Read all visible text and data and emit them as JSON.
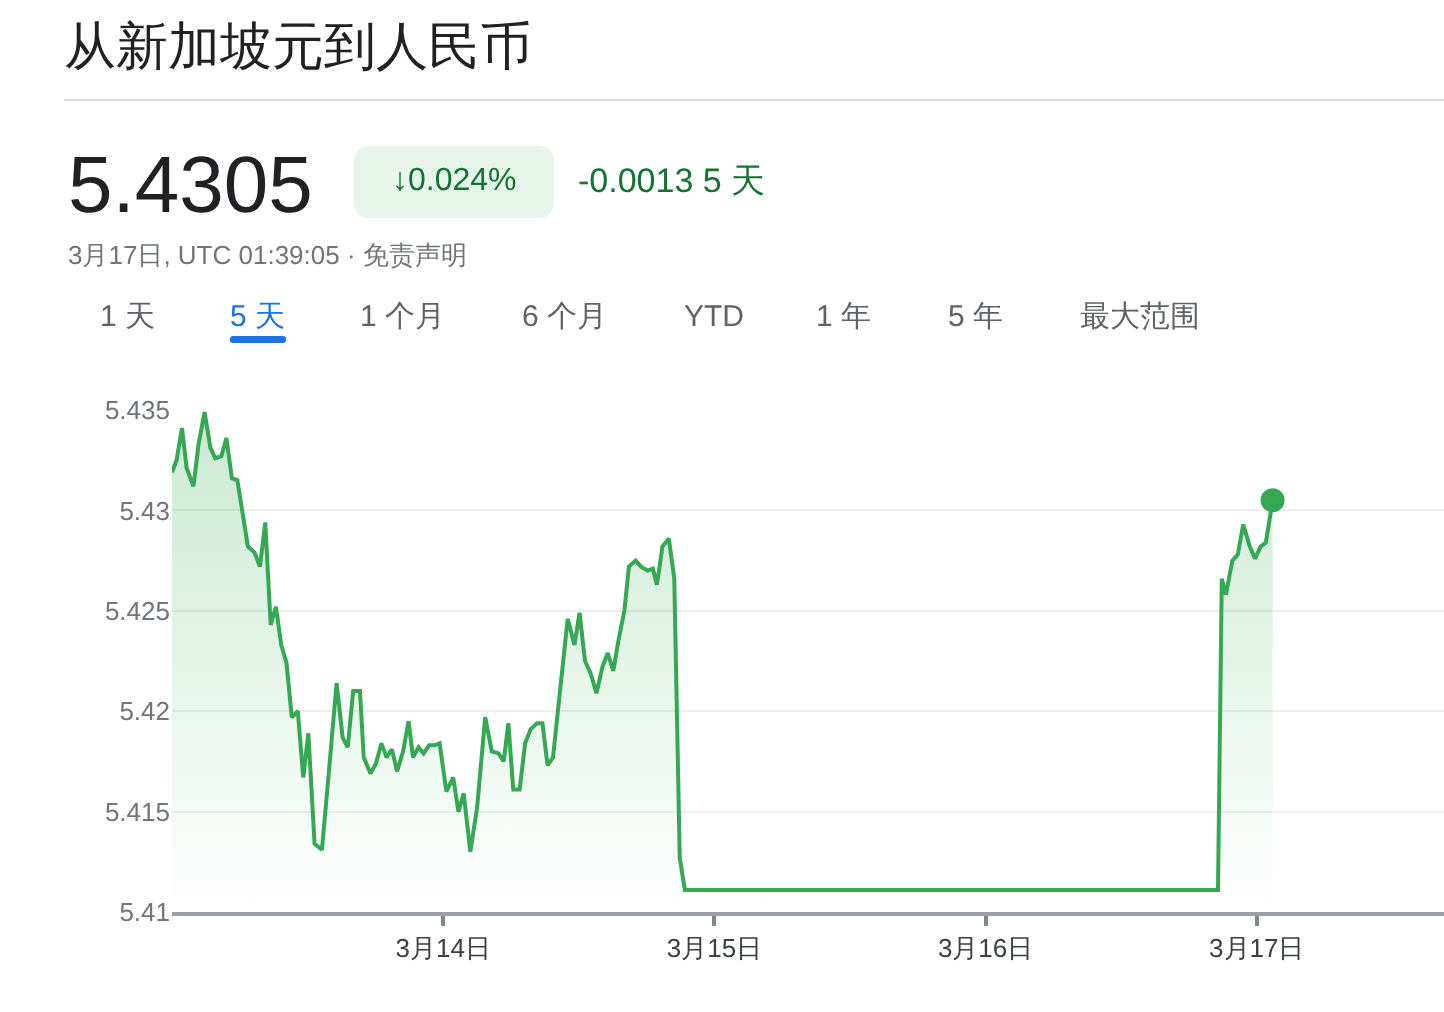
{
  "chart_data": {
    "type": "area",
    "title": "从新加坡元到人民币",
    "annotations": [
      "5.4305",
      "↓0.024%",
      "-0.0013 5 天",
      "3月17日, UTC 01:39:05 · 免责声明",
      "1 天",
      "5 天",
      "1 个月",
      "6 个月",
      "YTD",
      "1 年",
      "5 年",
      "最大范围"
    ],
    "series": [
      {
        "color": "#34a853",
        "x": [
          "--03-13T00:00",
          "--03-13T00:24",
          "--03-13T00:53",
          "--03-13T01:18",
          "--03-13T01:54",
          "--03-13T02:21",
          "--03-13T02:53",
          "--03-13T03:24",
          "--03-13T03:50",
          "--03-13T04:22",
          "--03-13T04:49",
          "--03-13T05:18",
          "--03-13T05:47",
          "--03-13T06:43",
          "--03-13T07:19",
          "--03-13T07:47",
          "--03-13T08:15",
          "--03-13T08:44",
          "--03-13T09:12",
          "--03-13T09:40",
          "--03-13T10:08",
          "--03-13T10:36",
          "--03-13T11:08",
          "--03-13T11:37",
          "--03-13T12:04",
          "--03-13T12:37",
          "--03-13T13:16",
          "--03-13T13:55",
          "--03-13T14:34",
          "--03-13T15:06",
          "--03-13T15:33",
          "--03-13T16:02",
          "--03-13T16:38",
          "--03-13T16:58",
          "--03-13T17:34",
          "--03-13T18:03",
          "--03-13T18:32",
          "--03-13T18:59",
          "--03-13T19:28",
          "--03-13T19:55",
          "--03-13T20:27",
          "--03-13T20:56",
          "--03-13T21:20",
          "--03-13T21:49",
          "--03-13T22:16",
          "--03-13T22:45",
          "--03-13T23:14",
          "--03-13T23:41",
          "--03-14T00:17",
          "--03-14T00:53",
          "--03-14T01:21",
          "--03-14T01:49",
          "--03-14T02:24",
          "--03-14T03:00",
          "--03-14T03:43",
          "--03-14T04:18",
          "--03-14T04:54",
          "--03-14T05:21",
          "--03-14T05:46",
          "--03-14T06:12",
          "--03-14T06:46",
          "--03-14T07:15",
          "--03-14T07:44",
          "--03-14T08:18",
          "--03-14T08:47",
          "--03-14T09:14",
          "--03-14T09:43",
          "--03-14T10:19",
          "--03-14T11:01",
          "--03-14T11:37",
          "--03-14T12:04",
          "--03-14T12:33",
          "--03-14T13:02",
          "--03-14T13:34",
          "--03-14T14:05",
          "--03-14T14:34",
          "--03-14T15:03",
          "--03-14T15:30",
          "--03-14T16:02",
          "--03-14T16:26",
          "--03-14T17:02",
          "--03-14T17:30",
          "--03-14T18:06",
          "--03-14T18:33",
          "--03-14T18:55",
          "--03-14T19:24",
          "--03-14T19:58",
          "--03-14T20:27",
          "--03-14T20:56",
          "--03-14T21:23",
          "--03-16T20:34",
          "--03-16T20:54",
          "--03-16T21:16",
          "--03-16T21:50",
          "--03-16T22:19",
          "--03-16T22:48",
          "--03-16T23:23",
          "--03-16T23:51",
          "--03-17T00:20",
          "--03-17T00:48",
          "--03-17T01:24"
        ],
        "values": [
          5.4319,
          5.4325,
          5.4341,
          5.4321,
          5.4312,
          5.4333,
          5.4349,
          5.4331,
          5.4326,
          5.4327,
          5.4336,
          5.4316,
          5.4315,
          5.4282,
          5.4279,
          5.4272,
          5.4294,
          5.4243,
          5.4252,
          5.4233,
          5.4224,
          5.4197,
          5.42,
          5.4167,
          5.4189,
          5.4134,
          5.4131,
          5.4172,
          5.4214,
          5.4187,
          5.4182,
          5.421,
          5.421,
          5.4177,
          5.4169,
          5.4174,
          5.4184,
          5.4177,
          5.4181,
          5.417,
          5.418,
          5.4195,
          5.4177,
          5.4182,
          5.4179,
          5.4183,
          5.4183,
          5.4184,
          5.416,
          5.4167,
          5.415,
          5.4159,
          5.413,
          5.4152,
          5.4197,
          5.418,
          5.4179,
          5.4175,
          5.4194,
          5.4161,
          5.4161,
          5.4184,
          5.4191,
          5.4194,
          5.4194,
          5.4173,
          5.4177,
          5.4209,
          5.4246,
          5.4233,
          5.4249,
          5.4225,
          5.4219,
          5.4209,
          5.4222,
          5.4229,
          5.422,
          5.4235,
          5.425,
          5.4272,
          5.4275,
          5.4272,
          5.427,
          5.4271,
          5.4263,
          5.4282,
          5.4286,
          5.4266,
          5.4127,
          5.4111,
          5.4111,
          5.4266,
          5.4258,
          5.4275,
          5.4278,
          5.4293,
          5.4282,
          5.4276,
          5.4282,
          5.4284,
          5.4305
        ]
      },
      {
        "type": "scatter",
        "color": "#34a853",
        "marker": "circle",
        "x": [
          "--03-17T01:24"
        ],
        "values": [
          5.4305
        ]
      }
    ],
    "xlim": [
      "--03-13T00:00",
      "--03-17T16:34"
    ],
    "xticks": [
      {
        "value": "--03-14",
        "label": "3月14日"
      },
      {
        "value": "--03-15",
        "label": "3月15日"
      },
      {
        "value": "--03-16",
        "label": "3月16日"
      },
      {
        "value": "--03-17",
        "label": "3月17日"
      }
    ],
    "ylim": [
      5.41,
      5.435
    ],
    "yticks": [
      5.41,
      5.415,
      5.42,
      5.425,
      5.43,
      5.435
    ],
    "grid": "y"
  }
}
